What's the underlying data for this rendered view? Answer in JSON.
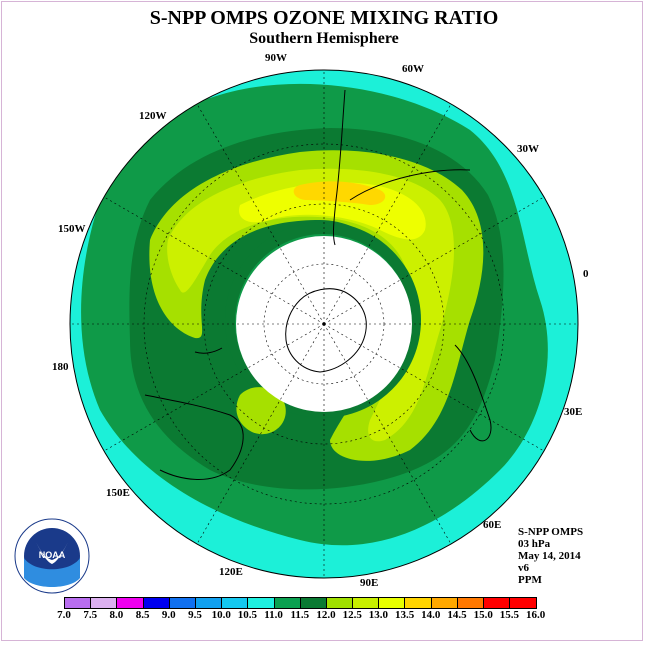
{
  "title": "S-NPP OMPS OZONE MIXING RATIO",
  "subtitle": "Southern Hemisphere",
  "longitude_labels": {
    "w90": "90W",
    "w60": "60W",
    "w30": "30W",
    "zero": "0",
    "e30": "30E",
    "e60": "60E",
    "e90": "90E",
    "e120": "120E",
    "e150": "150E",
    "d180": "180",
    "w150": "150W",
    "w120": "120W"
  },
  "info": {
    "instrument": "S-NPP OMPS",
    "pressure": "03 hPa",
    "date": "May 14, 2014",
    "version": "v6",
    "units": "PPM"
  },
  "logo": {
    "text": "NOAA",
    "icon": "noaa-logo"
  },
  "colorbar": {
    "ticks": [
      "7.0",
      "7.5",
      "8.0",
      "8.5",
      "9.0",
      "9.5",
      "10.0",
      "10.5",
      "11.0",
      "11.5",
      "12.0",
      "12.5",
      "13.0",
      "13.5",
      "14.0",
      "14.5",
      "15.0",
      "15.5",
      "16.0"
    ],
    "colors": [
      "#b96ef0",
      "#dcb0f0",
      "#f000f0",
      "#0000f0",
      "#1070f0",
      "#10a0f0",
      "#14c8f0",
      "#1ef0e0",
      "#0aa050",
      "#0a7a32",
      "#a0e000",
      "#c8f000",
      "#e8ff00",
      "#ffd400",
      "#ffa800",
      "#ff7800",
      "#ff0000",
      "#ff0000",
      "#8a4a2a"
    ]
  },
  "legend_colors": {
    "bg_cyan": "#1cf0d8",
    "green_dark": "#0b7a32",
    "green_mid": "#0f9a48",
    "lime": "#a6e000",
    "yellowgreen": "#ccf000",
    "yellow": "#eeff00",
    "gold": "#ffd800",
    "polar_night": "#ffffff"
  }
}
